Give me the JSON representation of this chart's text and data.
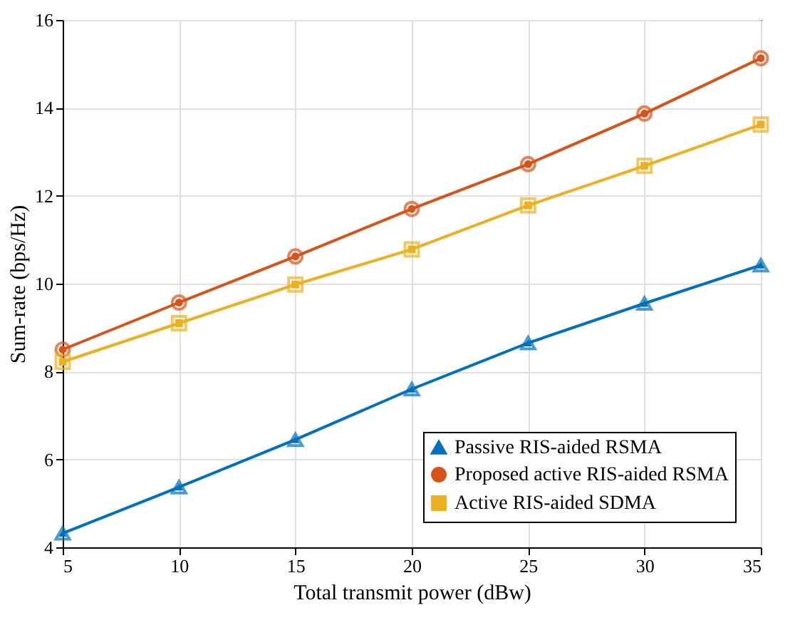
{
  "chart_data": {
    "type": "line",
    "xlabel": "Total transmit power (dBw)",
    "ylabel": "Sum-rate (bps/Hz)",
    "x": [
      5,
      10,
      15,
      20,
      25,
      30,
      35
    ],
    "series": [
      {
        "name": "Passive RIS-aided RSMA",
        "color": "#0072bd",
        "marker": "triangle",
        "values": [
          4.32,
          5.37,
          6.45,
          7.6,
          8.65,
          9.55,
          10.42
        ]
      },
      {
        "name": "Proposed active RIS-aided RSMA",
        "color": "#d95319",
        "marker": "circle",
        "values": [
          8.5,
          9.57,
          10.62,
          11.7,
          12.72,
          13.87,
          15.13
        ]
      },
      {
        "name": "Active RIS-aided SDMA",
        "color": "#edb120",
        "marker": "square",
        "values": [
          8.22,
          9.1,
          9.98,
          10.78,
          11.78,
          12.68,
          13.62
        ]
      }
    ],
    "xlim": [
      5,
      35
    ],
    "xticks": [
      5,
      10,
      15,
      20,
      25,
      30,
      35
    ],
    "ylim": [
      4,
      16
    ],
    "yticks": [
      4,
      6,
      8,
      10,
      12,
      14,
      16
    ],
    "grid": true,
    "legend": "bottom right",
    "line_style": "solid"
  }
}
